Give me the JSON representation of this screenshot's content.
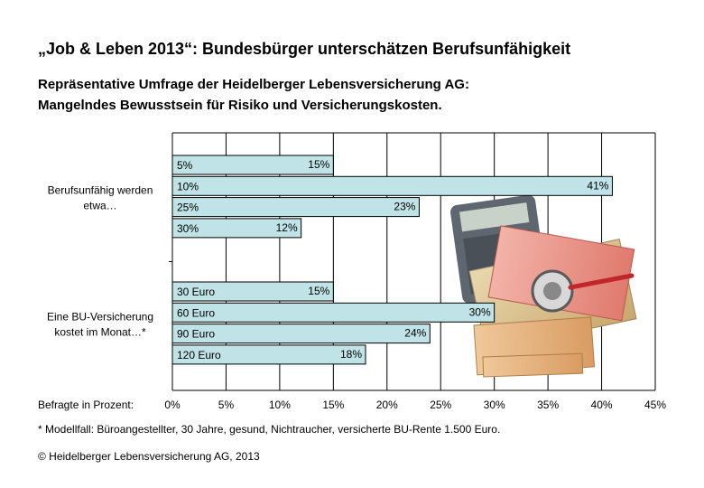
{
  "title": "„Job & Leben 2013“: Bundesbürger unterschätzen Berufsunfähigkeit",
  "subtitle_line1": "Repräsentative Umfrage der Heidelberger Lebensversicherung AG:",
  "subtitle_line2": "Mangelndes Bewusstsein für Risiko und Versicherungskosten.",
  "footnote": "* Modellfall: Büroangestellter, 30 Jahre, gesund, Nichtraucher, versicherte BU-Rente 1.500 Euro.",
  "copyright": "© Heidelberger Lebensversicherung AG, 2013",
  "illustration": "calculator-euro-banknotes-stethoscope-photo",
  "chart_data": {
    "type": "bar",
    "orientation": "horizontal",
    "xlabel": "Befragte in Prozent:",
    "xlim": [
      0,
      45
    ],
    "xticks": [
      "0%",
      "5%",
      "10%",
      "15%",
      "20%",
      "25%",
      "30%",
      "35%",
      "40%",
      "45%"
    ],
    "grid": true,
    "bar_color": "#bfe3e6",
    "groups": [
      {
        "label_line1": "Berufsunfähig werden",
        "label_line2": "etwa…",
        "bars": [
          {
            "category": "5%",
            "value": 15,
            "value_label": "15%"
          },
          {
            "category": "10%",
            "value": 41,
            "value_label": "41%"
          },
          {
            "category": "25%",
            "value": 23,
            "value_label": "23%"
          },
          {
            "category": "30%",
            "value": 12,
            "value_label": "12%"
          }
        ]
      },
      {
        "label_line1": "Eine BU-Versicherung",
        "label_line2": "kostet im Monat…*",
        "bars": [
          {
            "category": "30 Euro",
            "value": 15,
            "value_label": "15%"
          },
          {
            "category": "60 Euro",
            "value": 30,
            "value_label": "30%"
          },
          {
            "category": "90 Euro",
            "value": 24,
            "value_label": "24%"
          },
          {
            "category": "120 Euro",
            "value": 18,
            "value_label": "18%"
          }
        ]
      }
    ]
  }
}
